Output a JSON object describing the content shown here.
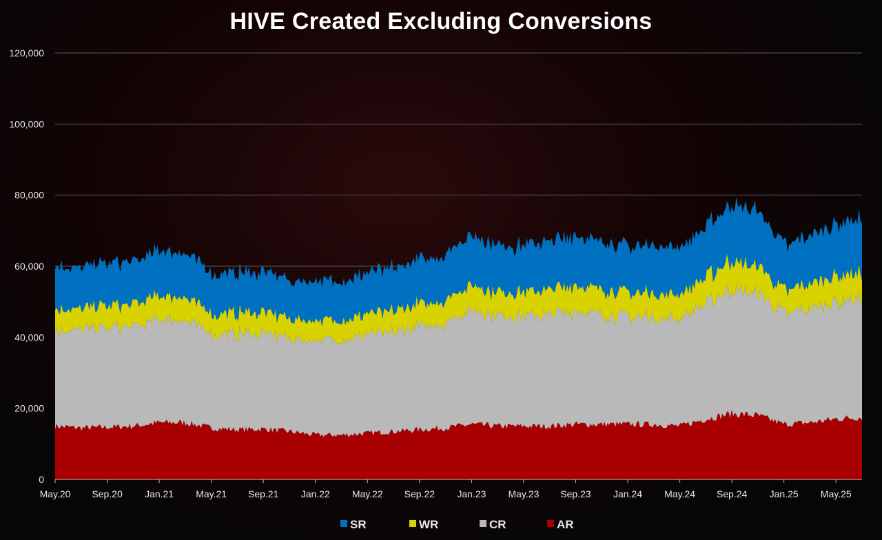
{
  "chart_data": {
    "type": "area",
    "stacked": true,
    "title": "HIVE Created Excluding Conversions",
    "ylim": [
      0,
      120000
    ],
    "yticks": [
      0,
      20000,
      40000,
      60000,
      80000,
      100000,
      120000
    ],
    "ytick_labels": [
      "0",
      "20,000",
      "40,000",
      "60,000",
      "80,000",
      "100,000",
      "120,000"
    ],
    "x_start": "2020-05",
    "x_end": "2025-07",
    "xtick_labels": [
      "May.20",
      "Sep.20",
      "Jan.21",
      "May.21",
      "Sep.21",
      "Jan.22",
      "May.22",
      "Sep.22",
      "Jan.23",
      "May.23",
      "Sep.23",
      "Jan.24",
      "May.24",
      "Sep.24",
      "Jan.25",
      "May.25"
    ],
    "grid": true,
    "legend_position": "bottom",
    "x": [
      "2020-05",
      "2020-07",
      "2020-09",
      "2020-11",
      "2021-01",
      "2021-03",
      "2021-05",
      "2021-07",
      "2021-09",
      "2021-11",
      "2022-01",
      "2022-03",
      "2022-05",
      "2022-07",
      "2022-09",
      "2022-11",
      "2023-01",
      "2023-03",
      "2023-05",
      "2023-07",
      "2023-09",
      "2023-11",
      "2024-01",
      "2024-03",
      "2024-05",
      "2024-07",
      "2024-09",
      "2024-11",
      "2025-01",
      "2025-03",
      "2025-05",
      "2025-07"
    ],
    "series": [
      {
        "name": "AR",
        "color": "#a80000",
        "values": [
          15000,
          14500,
          14700,
          15000,
          16000,
          16000,
          14500,
          14000,
          14200,
          13500,
          12500,
          12500,
          13000,
          13500,
          14000,
          14500,
          15500,
          15000,
          15000,
          15000,
          15500,
          15500,
          15500,
          15500,
          15000,
          17000,
          18500,
          18000,
          15500,
          16000,
          17000,
          17500
        ]
      },
      {
        "name": "CR",
        "color": "#b9b9b9",
        "values": [
          27000,
          27500,
          28000,
          28000,
          29000,
          29000,
          26500,
          27000,
          27000,
          26000,
          26500,
          27000,
          27500,
          28000,
          29000,
          30000,
          32000,
          31000,
          31000,
          31500,
          32000,
          31000,
          30000,
          30500,
          30000,
          33000,
          35000,
          34000,
          31000,
          32000,
          33000,
          34000
        ]
      },
      {
        "name": "WR",
        "color": "#d8d200",
        "values": [
          6000,
          5800,
          6200,
          6400,
          6500,
          6500,
          5800,
          5900,
          6000,
          5600,
          5500,
          5600,
          5800,
          6000,
          6200,
          6500,
          7000,
          6600,
          6800,
          7000,
          7200,
          7000,
          6800,
          7000,
          6800,
          7500,
          8000,
          7800,
          6500,
          7000,
          7300,
          7500
        ]
      },
      {
        "name": "SR",
        "color": "#0070c0",
        "values": [
          12000,
          11500,
          11800,
          12000,
          12500,
          12500,
          11000,
          11200,
          11500,
          10500,
          11000,
          11000,
          11500,
          12000,
          12500,
          13000,
          14000,
          13000,
          13000,
          13500,
          14000,
          13500,
          13000,
          13500,
          13000,
          14500,
          16000,
          15500,
          13000,
          13500,
          14500,
          15000
        ]
      }
    ],
    "legend": [
      "SR",
      "WR",
      "CR",
      "AR"
    ]
  }
}
